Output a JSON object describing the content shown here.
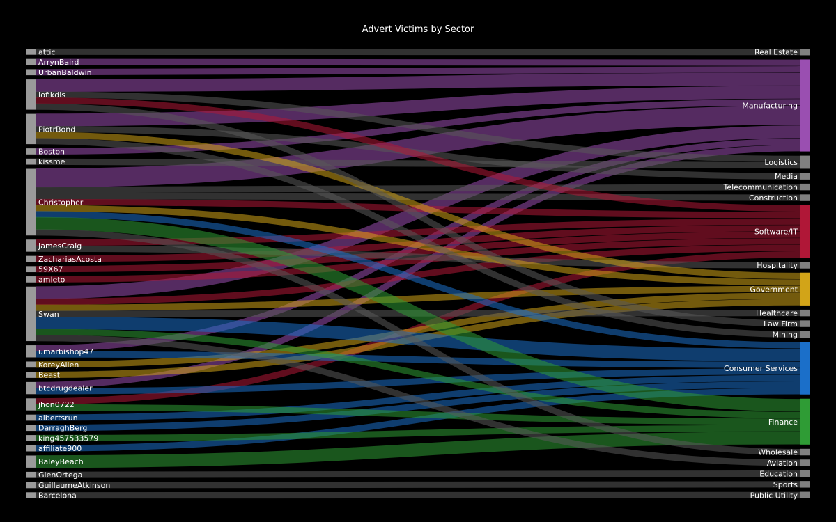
{
  "chart_data": {
    "type": "sankey",
    "title": "Advert Victims by Sector",
    "colors": {
      "background": "#000000",
      "source_node": "#9a9a9a",
      "neutral_node": "#808080",
      "manufacturing": "#9a4fb1",
      "software_it": "#b01737",
      "government": "#d2a418",
      "consumer_services": "#1b6fc9",
      "finance": "#2f9c35",
      "neutral_link": "#5a5a5a"
    },
    "sources": [
      "attic",
      "ArrynBaird",
      "UrbanBaldwin",
      "Iofikdis",
      "PiotrBond",
      "Boston",
      "kissme",
      "Christopher",
      "JamesCraig",
      "ZachariasAcosta",
      "59X67",
      "amleto",
      "Swan",
      "umarbishop47",
      "KoreyAllen",
      "Beast",
      "btcdrugdealer",
      "jhon0722",
      "albertsrun",
      "DarraghBerg",
      "king457533579",
      "affiliate900",
      "BaleyBeach",
      "GlenOrtega",
      "GuillaumeAtkinson",
      "Barcelona"
    ],
    "targets": [
      {
        "name": "Real Estate",
        "color": "neutral_node"
      },
      {
        "name": "Manufacturing",
        "color": "manufacturing"
      },
      {
        "name": "Logistics",
        "color": "neutral_node"
      },
      {
        "name": "Media",
        "color": "neutral_node"
      },
      {
        "name": "Telecommunication",
        "color": "neutral_node"
      },
      {
        "name": "Construction",
        "color": "neutral_node"
      },
      {
        "name": "Software/IT",
        "color": "software_it"
      },
      {
        "name": "Hospitality",
        "color": "neutral_node"
      },
      {
        "name": "Government",
        "color": "government"
      },
      {
        "name": "Healthcare",
        "color": "neutral_node"
      },
      {
        "name": "Law Firm",
        "color": "neutral_node"
      },
      {
        "name": "Mining",
        "color": "neutral_node"
      },
      {
        "name": "Consumer Services",
        "color": "consumer_services"
      },
      {
        "name": "Finance",
        "color": "finance"
      },
      {
        "name": "Wholesale",
        "color": "neutral_node"
      },
      {
        "name": "Aviation",
        "color": "neutral_node"
      },
      {
        "name": "Education",
        "color": "neutral_node"
      },
      {
        "name": "Sports",
        "color": "neutral_node"
      },
      {
        "name": "Public Utility",
        "color": "neutral_node"
      }
    ],
    "links": [
      [
        "attic",
        "Real Estate",
        1
      ],
      [
        "ArrynBaird",
        "Manufacturing",
        1
      ],
      [
        "UrbanBaldwin",
        "Manufacturing",
        1
      ],
      [
        "Iofikdis",
        "Manufacturing",
        2
      ],
      [
        "Iofikdis",
        "Software/IT",
        1
      ],
      [
        "Iofikdis",
        "Logistics",
        1
      ],
      [
        "PiotrBond",
        "Manufacturing",
        2
      ],
      [
        "PiotrBond",
        "Government",
        1
      ],
      [
        "PiotrBond",
        "Media",
        1
      ],
      [
        "Boston",
        "Manufacturing",
        1
      ],
      [
        "kissme",
        "Logistics",
        1
      ],
      [
        "Christopher",
        "Manufacturing",
        3
      ],
      [
        "Christopher",
        "Finance",
        2
      ],
      [
        "Christopher",
        "Consumer Services",
        1
      ],
      [
        "Christopher",
        "Government",
        1
      ],
      [
        "Christopher",
        "Construction",
        1
      ],
      [
        "Christopher",
        "Software/IT",
        1
      ],
      [
        "JamesCraig",
        "Software/IT",
        1
      ],
      [
        "JamesCraig",
        "Hospitality",
        1
      ],
      [
        "ZachariasAcosta",
        "Software/IT",
        1
      ],
      [
        "59X67",
        "Software/IT",
        1
      ],
      [
        "amleto",
        "Software/IT",
        1
      ],
      [
        "Swan",
        "Manufacturing",
        2
      ],
      [
        "Swan",
        "Consumer Services",
        2
      ],
      [
        "Swan",
        "Government",
        1
      ],
      [
        "Swan",
        "Healthcare",
        1
      ],
      [
        "Swan",
        "Finance",
        1
      ],
      [
        "Swan",
        "Software/IT",
        1
      ],
      [
        "umarbishop47",
        "Manufacturing",
        1
      ],
      [
        "umarbishop47",
        "Consumer Services",
        1
      ],
      [
        "KoreyAllen",
        "Government",
        1
      ],
      [
        "Beast",
        "Government",
        1
      ],
      [
        "btcdrugdealer",
        "Consumer Services",
        1
      ],
      [
        "btcdrugdealer",
        "Manufacturing",
        1
      ],
      [
        "jhon0722",
        "Finance",
        1
      ],
      [
        "jhon0722",
        "Software/IT",
        1
      ],
      [
        "albertsrun",
        "Consumer Services",
        1
      ],
      [
        "DarraghBerg",
        "Consumer Services",
        1
      ],
      [
        "king457533579",
        "Finance",
        1
      ],
      [
        "affiliate900",
        "Consumer Services",
        1
      ],
      [
        "BaleyBeach",
        "Finance",
        2
      ],
      [
        "GlenOrtega",
        "Education",
        1
      ],
      [
        "GuillaumeAtkinson",
        "Sports",
        1
      ],
      [
        "Barcelona",
        "Public Utility",
        1
      ],
      [
        "Christopher",
        "Wholesale",
        1
      ],
      [
        "Swan",
        "Aviation",
        1
      ],
      [
        "Iofikdis",
        "Law Firm",
        1
      ],
      [
        "PiotrBond",
        "Mining",
        1
      ],
      [
        "Christopher",
        "Telecommunication",
        1
      ]
    ]
  }
}
